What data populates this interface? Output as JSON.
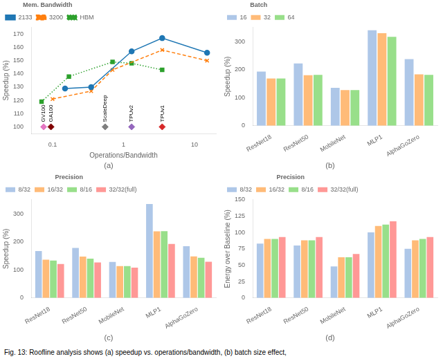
{
  "chart_data": [
    {
      "type": "line",
      "title": "(a)",
      "x_label": "Operations/Bandwidth",
      "y_label": "Speedup (%)",
      "legend_title": "Mem. Bandwidth",
      "legend": "upper left",
      "log": "x",
      "grid": false,
      "xlim": [
        0.05,
        20
      ],
      "xticks": [
        0.1,
        1,
        10
      ],
      "ylim": [
        95,
        175
      ],
      "yticks": [
        100,
        110,
        120,
        130,
        140,
        150,
        160,
        170
      ],
      "series": [
        {
          "name": "2133",
          "color": "#1f77b4",
          "line_style": "solid",
          "marker": "circle",
          "x": [
            0.15,
            0.35,
            1.3,
            3.5,
            15
          ],
          "values": [
            129,
            130,
            157,
            167,
            156
          ]
        },
        {
          "name": "3200",
          "color": "#ff7f0e",
          "line_style": "dashed",
          "marker": "x",
          "x": [
            0.1,
            0.35,
            0.7,
            3.5,
            15
          ],
          "values": [
            121,
            127,
            143,
            158,
            150
          ]
        },
        {
          "name": "HBM",
          "color": "#2ca02c",
          "line_style": "dotted",
          "marker": "square",
          "x": [
            0.07,
            0.17,
            0.7,
            1.3,
            3.5
          ],
          "values": [
            119,
            138,
            149,
            148,
            143
          ]
        }
      ],
      "annotations": [
        {
          "text": "GV100",
          "x": 0.075,
          "y": 100,
          "color": "#e377c2",
          "marker": "diamond"
        },
        {
          "text": "GA100",
          "x": 0.095,
          "y": 100,
          "color": "#7f0000",
          "marker": "diamond"
        },
        {
          "text": "ScaleDeep",
          "x": 0.55,
          "y": 100,
          "color": "#7f7f7f",
          "marker": "diamond"
        },
        {
          "text": "TPUv2",
          "x": 1.3,
          "y": 100,
          "color": "#9467bd",
          "marker": "diamond"
        },
        {
          "text": "TPUv1",
          "x": 3.5,
          "y": 100,
          "color": "#d62728",
          "marker": "diamond"
        }
      ]
    },
    {
      "type": "bar",
      "title": "(b)",
      "y_label": "Speedup (%)",
      "legend_title": "Batch",
      "legend": "upper left",
      "grid": false,
      "categories": [
        "ResNet18",
        "ResNet50",
        "MobileNet",
        "MLP1",
        "AlphaGoZero"
      ],
      "series": [
        {
          "name": "16",
          "color": "#aec7e8",
          "values": [
            193,
            222,
            135,
            340,
            237
          ]
        },
        {
          "name": "32",
          "color": "#ffbb78",
          "values": [
            168,
            180,
            127,
            330,
            183
          ]
        },
        {
          "name": "64",
          "color": "#98df8a",
          "values": [
            168,
            181,
            127,
            317,
            181
          ]
        }
      ],
      "ylim": [
        0,
        350
      ],
      "yticks": [
        0,
        100,
        200,
        300
      ]
    },
    {
      "type": "bar",
      "title": "(c)",
      "y_label": "Speedup (%)",
      "legend_title": "Precision",
      "legend": "upper left",
      "grid": false,
      "categories": [
        "ResNet18",
        "ResNet50",
        "MobileNet",
        "MLP1",
        "AlphaGoZero"
      ],
      "series": [
        {
          "name": "8/32",
          "color": "#aec7e8",
          "values": [
            167,
            178,
            128,
            335,
            184
          ]
        },
        {
          "name": "16/32",
          "color": "#ffbb78",
          "values": [
            136,
            147,
            113,
            237,
            148
          ]
        },
        {
          "name": "8/16",
          "color": "#98df8a",
          "values": [
            133,
            140,
            113,
            238,
            143
          ]
        },
        {
          "name": "32/32(full)",
          "color": "#ff9896",
          "values": [
            121,
            126,
            108,
            192,
            129
          ]
        }
      ],
      "ylim": [
        0,
        350
      ],
      "yticks": [
        0,
        100,
        200,
        300
      ]
    },
    {
      "type": "bar",
      "title": "(d)",
      "y_label": "Energy over Baseline (%)",
      "legend_title": "Precision",
      "legend": "upper left",
      "grid": false,
      "categories": [
        "ResNet18",
        "ResNet50",
        "MobileNet",
        "MLP1",
        "AlphaGoZero"
      ],
      "series": [
        {
          "name": "8/32",
          "color": "#aec7e8",
          "values": [
            83,
            80,
            48,
            100,
            75
          ]
        },
        {
          "name": "16/32",
          "color": "#ffbb78",
          "values": [
            90,
            88,
            62,
            110,
            88
          ]
        },
        {
          "name": "8/16",
          "color": "#98df8a",
          "values": [
            90,
            88,
            62,
            112,
            90
          ]
        },
        {
          "name": "32/32(full)",
          "color": "#ff9896",
          "values": [
            93,
            93,
            67,
            117,
            93
          ]
        }
      ],
      "ylim": [
        0,
        150
      ],
      "yticks": [
        0,
        25,
        50,
        75,
        100,
        125,
        150
      ]
    }
  ],
  "caption": "Fig. 13: Roofline analysis shows (a) speedup vs. operations/bandwidth, (b) batch size effect,"
}
